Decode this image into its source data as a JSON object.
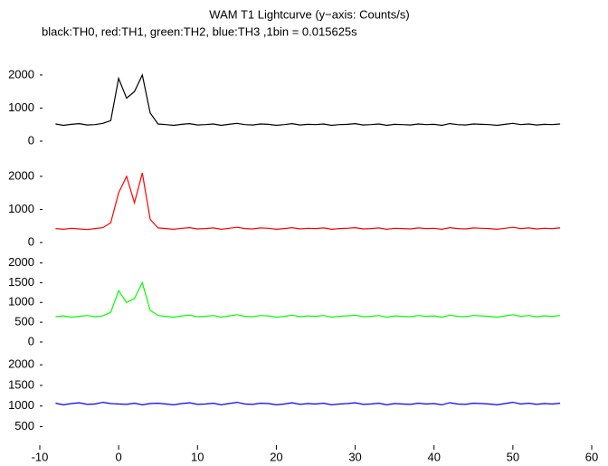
{
  "chart_data": [
    {
      "type": "line",
      "title": "WAM T1 Lightcurve (y−axis: Counts/s)",
      "subtitle": "black:TH0, red:TH1, green:TH2, blue:TH3 ,1bin = 0.015625s",
      "color": "#000000",
      "xlim": [
        -10,
        60
      ],
      "ylim": [
        0,
        2900
      ],
      "yticks": [
        0,
        1000,
        2000
      ],
      "x": [
        -8,
        -7,
        -6,
        -5,
        -4,
        -3,
        -2,
        -1,
        0,
        1,
        2,
        3,
        4,
        5,
        6,
        7,
        8,
        9,
        10,
        11,
        12,
        13,
        14,
        15,
        16,
        17,
        18,
        19,
        20,
        21,
        22,
        23,
        24,
        25,
        26,
        27,
        28,
        29,
        30,
        31,
        32,
        33,
        34,
        35,
        36,
        37,
        38,
        39,
        40,
        41,
        42,
        43,
        44,
        45,
        46,
        47,
        48,
        49,
        50,
        51,
        52,
        53,
        54,
        55,
        56
      ],
      "values": [
        520,
        480,
        510,
        530,
        490,
        500,
        540,
        620,
        1900,
        1300,
        1500,
        2000,
        850,
        520,
        500,
        480,
        510,
        530,
        490,
        500,
        520,
        480,
        510,
        540,
        500,
        490,
        520,
        510,
        480,
        500,
        530,
        490,
        510,
        500,
        520,
        480,
        500,
        510,
        530,
        490,
        500,
        520,
        480,
        510,
        500,
        490,
        520,
        500,
        510,
        480,
        530,
        500,
        490,
        520,
        510,
        500,
        480,
        510,
        540,
        500,
        520,
        490,
        510,
        500,
        520
      ]
    },
    {
      "type": "line",
      "color": "#ff0000",
      "xlim": [
        -10,
        60
      ],
      "ylim": [
        0,
        2900
      ],
      "yticks": [
        0,
        1000,
        2000
      ],
      "x": [
        -8,
        -7,
        -6,
        -5,
        -4,
        -3,
        -2,
        -1,
        0,
        1,
        2,
        3,
        4,
        5,
        6,
        7,
        8,
        9,
        10,
        11,
        12,
        13,
        14,
        15,
        16,
        17,
        18,
        19,
        20,
        21,
        22,
        23,
        24,
        25,
        26,
        27,
        28,
        29,
        30,
        31,
        32,
        33,
        34,
        35,
        36,
        37,
        38,
        39,
        40,
        41,
        42,
        43,
        44,
        45,
        46,
        47,
        48,
        49,
        50,
        51,
        52,
        53,
        54,
        55,
        56
      ],
      "values": [
        420,
        400,
        430,
        410,
        390,
        420,
        450,
        600,
        1500,
        2000,
        1200,
        2100,
        700,
        440,
        420,
        400,
        430,
        450,
        410,
        420,
        440,
        400,
        430,
        460,
        420,
        410,
        440,
        430,
        400,
        420,
        450,
        410,
        430,
        420,
        440,
        400,
        420,
        430,
        450,
        410,
        420,
        440,
        400,
        430,
        420,
        410,
        440,
        420,
        430,
        400,
        450,
        420,
        410,
        440,
        430,
        420,
        400,
        430,
        460,
        420,
        440,
        410,
        430,
        420,
        440
      ]
    },
    {
      "type": "line",
      "color": "#00ff00",
      "xlim": [
        -10,
        60
      ],
      "ylim": [
        0,
        2150
      ],
      "yticks": [
        0,
        500,
        1000,
        1500,
        2000
      ],
      "x": [
        -8,
        -7,
        -6,
        -5,
        -4,
        -3,
        -2,
        -1,
        0,
        1,
        2,
        3,
        4,
        5,
        6,
        7,
        8,
        9,
        10,
        11,
        12,
        13,
        14,
        15,
        16,
        17,
        18,
        19,
        20,
        21,
        22,
        23,
        24,
        25,
        26,
        27,
        28,
        29,
        30,
        31,
        32,
        33,
        34,
        35,
        36,
        37,
        38,
        39,
        40,
        41,
        42,
        43,
        44,
        45,
        46,
        47,
        48,
        49,
        50,
        51,
        52,
        53,
        54,
        55,
        56
      ],
      "values": [
        640,
        660,
        630,
        650,
        670,
        640,
        660,
        750,
        1300,
        1000,
        1100,
        1500,
        800,
        670,
        650,
        630,
        660,
        680,
        640,
        650,
        670,
        630,
        660,
        690,
        650,
        640,
        670,
        660,
        630,
        650,
        680,
        640,
        660,
        650,
        670,
        630,
        650,
        660,
        680,
        640,
        650,
        670,
        630,
        660,
        650,
        640,
        670,
        650,
        660,
        630,
        680,
        650,
        640,
        670,
        660,
        650,
        630,
        660,
        690,
        650,
        670,
        640,
        660,
        650,
        670
      ]
    },
    {
      "type": "line",
      "color": "#0000ff",
      "xlim": [
        -10,
        60
      ],
      "ylim": [
        50,
        2400
      ],
      "yticks": [
        500,
        1000,
        1500,
        2000
      ],
      "xticks": [
        -10,
        0,
        10,
        20,
        30,
        40,
        50,
        60
      ],
      "x": [
        -8,
        -7,
        -6,
        -5,
        -4,
        -3,
        -2,
        -1,
        0,
        1,
        2,
        3,
        4,
        5,
        6,
        7,
        8,
        9,
        10,
        11,
        12,
        13,
        14,
        15,
        16,
        17,
        18,
        19,
        20,
        21,
        22,
        23,
        24,
        25,
        26,
        27,
        28,
        29,
        30,
        31,
        32,
        33,
        34,
        35,
        36,
        37,
        38,
        39,
        40,
        41,
        42,
        43,
        44,
        45,
        46,
        47,
        48,
        49,
        50,
        51,
        52,
        53,
        54,
        55,
        56
      ],
      "values": [
        1070,
        1030,
        1060,
        1080,
        1040,
        1050,
        1090,
        1060,
        1050,
        1040,
        1070,
        1030,
        1060,
        1070,
        1050,
        1030,
        1060,
        1080,
        1040,
        1050,
        1070,
        1030,
        1060,
        1090,
        1050,
        1040,
        1070,
        1060,
        1030,
        1050,
        1080,
        1040,
        1060,
        1050,
        1070,
        1030,
        1050,
        1060,
        1080,
        1040,
        1050,
        1070,
        1030,
        1060,
        1050,
        1040,
        1070,
        1050,
        1060,
        1030,
        1080,
        1050,
        1040,
        1070,
        1060,
        1050,
        1030,
        1060,
        1090,
        1050,
        1070,
        1040,
        1060,
        1050,
        1070
      ]
    }
  ]
}
